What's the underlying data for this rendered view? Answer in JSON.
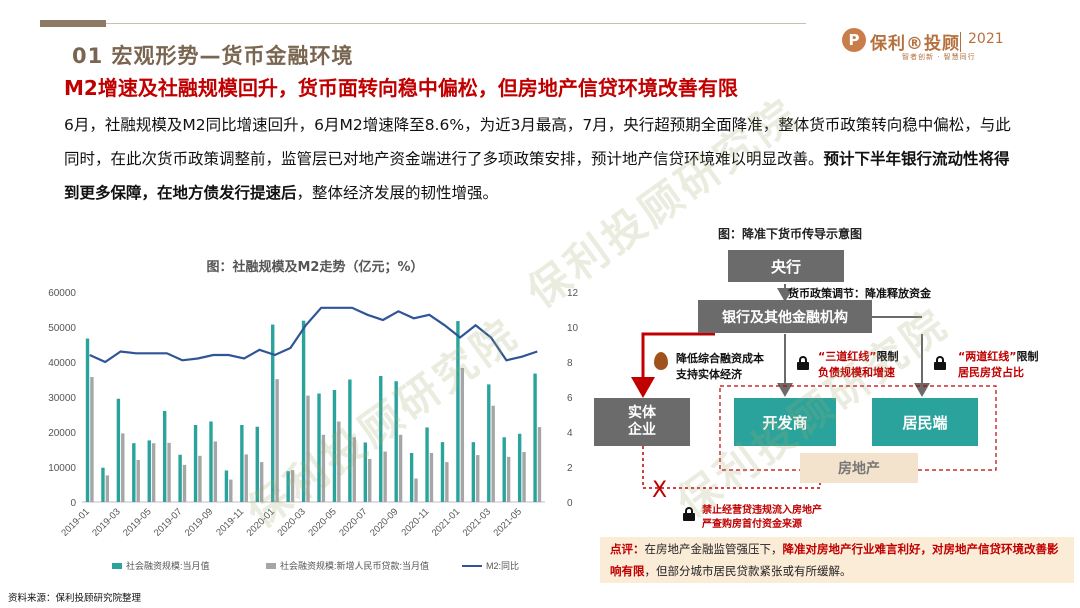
{
  "header": {
    "section_title": "01  宏观形势—货币金融环境",
    "headline": "M2增速及社融规模回升，货币面转向稳中偏松，但房地产信贷环境改善有限",
    "body_normal_1": "6月，社融规模及M2同比增速回升，6月M2增速降至8.6%，为近3月最高，7月，央行超预期全面降准，整体货币政策转向稳中偏松，与此同时，在此次货币政策调整前，监管层已对地产资金端进行了多项政策安排，预计地产信贷环境难以明显改善。",
    "body_bold": "预计下半年银行流动性将得到更多保障，在地方债发行提速后",
    "body_normal_2": "，整体经济发展的韧性增强。"
  },
  "brand": {
    "logo_letter": "P",
    "name": "保利®投顾",
    "year": "2021",
    "slogan": "智者创新 · 智慧同行"
  },
  "watermark_text": "保利投顾研究院",
  "source_text": "资料来源：保利投顾研究院整理",
  "chart_data": {
    "type": "bar",
    "title": "图：社融规模及M2走势（亿元；%）",
    "x": [
      "2019-01",
      "2019-02",
      "2019-03",
      "2019-04",
      "2019-05",
      "2019-06",
      "2019-07",
      "2019-08",
      "2019-09",
      "2019-10",
      "2019-11",
      "2019-12",
      "2020-01",
      "2020-02",
      "2020-03",
      "2020-04",
      "2020-05",
      "2020-06",
      "2020-07",
      "2020-08",
      "2020-09",
      "2020-10",
      "2020-11",
      "2020-12",
      "2021-01",
      "2021-02",
      "2021-03",
      "2021-04",
      "2021-05",
      "2021-06"
    ],
    "x_tick_labels": [
      "2019-01",
      "2019-03",
      "2019-05",
      "2019-07",
      "2019-09",
      "2019-11",
      "2020-01",
      "2020-03",
      "2020-05",
      "2020-07",
      "2020-09",
      "2020-11",
      "2021-01",
      "2021-03",
      "2021-05"
    ],
    "series": [
      {
        "name": "社会融资规模:当月值",
        "type": "bar",
        "color": "#2aa39d",
        "values": [
          46700,
          9800,
          29500,
          16800,
          17600,
          26000,
          13500,
          22000,
          23000,
          9000,
          22000,
          21500,
          50700,
          8800,
          51800,
          31000,
          32000,
          35000,
          17000,
          36000,
          34500,
          14000,
          21300,
          17100,
          51700,
          17100,
          33600,
          18500,
          19500,
          36700
        ]
      },
      {
        "name": "社会融资规模:新增人民币贷款:当月值",
        "type": "bar",
        "color": "#a6a6a6",
        "values": [
          35700,
          7600,
          19600,
          12000,
          16800,
          16900,
          10600,
          13200,
          17300,
          6400,
          13600,
          11400,
          35100,
          9100,
          30400,
          19200,
          23000,
          18500,
          12300,
          14400,
          19200,
          6700,
          14000,
          11400,
          38300,
          13400,
          27500,
          12900,
          14300,
          21400
        ]
      },
      {
        "name": "M2:同比",
        "type": "line",
        "color": "#2f5597",
        "axis": "right",
        "values": [
          8.4,
          8.0,
          8.6,
          8.5,
          8.5,
          8.5,
          8.1,
          8.2,
          8.4,
          8.4,
          8.2,
          8.7,
          8.4,
          8.8,
          10.1,
          11.1,
          11.1,
          11.1,
          10.7,
          10.4,
          10.9,
          10.5,
          10.7,
          10.1,
          9.4,
          10.1,
          9.4,
          8.1,
          8.3,
          8.6
        ]
      }
    ],
    "ylim_left": [
      0,
      60000
    ],
    "yticks_left": [
      "0",
      "10000",
      "20000",
      "30000",
      "40000",
      "50000",
      "60000"
    ],
    "ylim_right": [
      0,
      12
    ],
    "yticks_right": [
      "0",
      "2",
      "4",
      "6",
      "8",
      "10",
      "12"
    ],
    "legend_position": "bottom"
  },
  "diagram": {
    "title": "图：降准下货币传导示意图",
    "central_bank": "央行",
    "policy_label": "货币政策调节：降准释放资金",
    "banks": "银行及其他金融机构",
    "entity_line1": "实体",
    "entity_line2": "企业",
    "lower_cost_line1": "降低综合融资成本",
    "lower_cost_line2": "支持实体经济",
    "three_red_quote": "“三道红线”",
    "three_red_rest": "限制",
    "three_red_line2": "负债规模和增速",
    "two_red_quote": "“两道红线”",
    "two_red_rest": "限制",
    "two_red_line2": "居民房贷占比",
    "developer": "开发商",
    "resident": "居民端",
    "real_estate": "房地产",
    "ban_line1": "禁止经营贷违规流入房地产",
    "ban_line2": "严查购房首付资金来源",
    "x_mark": "X",
    "comment_label": "点评：",
    "comment_normal_1": "在房地产金融监管强压下，",
    "comment_red": "降准对房地产行业难言利好，对房地产信贷环境改善影响有限",
    "comment_normal_2": "，但部分城市居民贷款紧张或有所缓解。"
  }
}
